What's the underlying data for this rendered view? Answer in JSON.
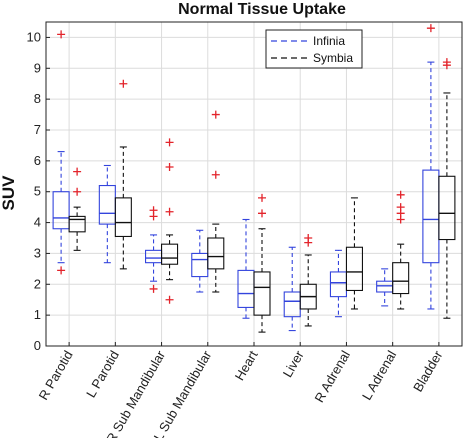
{
  "chart_data": {
    "type": "box",
    "title": "Normal Tissue Uptake",
    "ylabel": "SUV",
    "xlabel": "",
    "ylim": [
      0,
      10.5
    ],
    "yticks": [
      0,
      1,
      2,
      3,
      4,
      5,
      6,
      7,
      8,
      9,
      10
    ],
    "grid": true,
    "legend_position": "top-right",
    "categories": [
      "R Parotid",
      "L Parotid",
      "R Sub Mandibular",
      "L Sub Mandibular",
      "Heart",
      "Liver",
      "R Adrenal",
      "L Adrenal",
      "Bladder"
    ],
    "series": [
      {
        "name": "Infinia",
        "color": "#3344dd",
        "boxes": [
          {
            "lower_whisker": 2.7,
            "q1": 3.8,
            "median": 4.15,
            "q3": 5.0,
            "upper_whisker": 6.3,
            "outliers": [
              10.1,
              2.45
            ]
          },
          {
            "lower_whisker": 2.7,
            "q1": 3.95,
            "median": 4.3,
            "q3": 5.2,
            "upper_whisker": 5.85,
            "outliers": []
          },
          {
            "lower_whisker": 2.1,
            "q1": 2.7,
            "median": 2.85,
            "q3": 3.1,
            "upper_whisker": 3.6,
            "outliers": [
              4.4,
              4.2,
              1.85
            ]
          },
          {
            "lower_whisker": 1.75,
            "q1": 2.25,
            "median": 2.8,
            "q3": 3.0,
            "upper_whisker": 3.75,
            "outliers": []
          },
          {
            "lower_whisker": 0.9,
            "q1": 1.25,
            "median": 1.7,
            "q3": 2.45,
            "upper_whisker": 4.1,
            "outliers": []
          },
          {
            "lower_whisker": 0.5,
            "q1": 0.95,
            "median": 1.45,
            "q3": 1.75,
            "upper_whisker": 3.2,
            "outliers": []
          },
          {
            "lower_whisker": 0.95,
            "q1": 1.6,
            "median": 2.05,
            "q3": 2.4,
            "upper_whisker": 3.1,
            "outliers": []
          },
          {
            "lower_whisker": 1.3,
            "q1": 1.75,
            "median": 1.95,
            "q3": 2.1,
            "upper_whisker": 2.5,
            "outliers": []
          },
          {
            "lower_whisker": 1.2,
            "q1": 2.7,
            "median": 4.1,
            "q3": 5.7,
            "upper_whisker": 9.2,
            "outliers": [
              10.3
            ]
          }
        ]
      },
      {
        "name": "Symbia",
        "color": "#111111",
        "boxes": [
          {
            "lower_whisker": 3.1,
            "q1": 3.7,
            "median": 4.1,
            "q3": 4.2,
            "upper_whisker": 4.5,
            "outliers": [
              5.65,
              5.0
            ]
          },
          {
            "lower_whisker": 2.5,
            "q1": 3.55,
            "median": 4.0,
            "q3": 4.8,
            "upper_whisker": 6.45,
            "outliers": [
              8.5
            ]
          },
          {
            "lower_whisker": 2.15,
            "q1": 2.65,
            "median": 2.85,
            "q3": 3.3,
            "upper_whisker": 3.6,
            "outliers": [
              6.6,
              5.8,
              4.35,
              1.5
            ]
          },
          {
            "lower_whisker": 1.75,
            "q1": 2.5,
            "median": 2.9,
            "q3": 3.5,
            "upper_whisker": 3.95,
            "outliers": [
              7.5,
              5.55
            ]
          },
          {
            "lower_whisker": 0.45,
            "q1": 1.0,
            "median": 1.9,
            "q3": 2.4,
            "upper_whisker": 3.8,
            "outliers": [
              4.8,
              4.3
            ]
          },
          {
            "lower_whisker": 0.65,
            "q1": 1.2,
            "median": 1.6,
            "q3": 2.0,
            "upper_whisker": 2.95,
            "outliers": [
              3.5,
              3.35
            ]
          },
          {
            "lower_whisker": 1.2,
            "q1": 1.8,
            "median": 2.4,
            "q3": 3.2,
            "upper_whisker": 4.8,
            "outliers": []
          },
          {
            "lower_whisker": 1.2,
            "q1": 1.7,
            "median": 2.1,
            "q3": 2.7,
            "upper_whisker": 3.3,
            "outliers": [
              4.9,
              4.5,
              4.3,
              4.1
            ]
          },
          {
            "lower_whisker": 0.9,
            "q1": 3.45,
            "median": 4.3,
            "q3": 5.5,
            "upper_whisker": 8.2,
            "outliers": [
              9.2,
              9.1
            ]
          }
        ]
      }
    ]
  }
}
